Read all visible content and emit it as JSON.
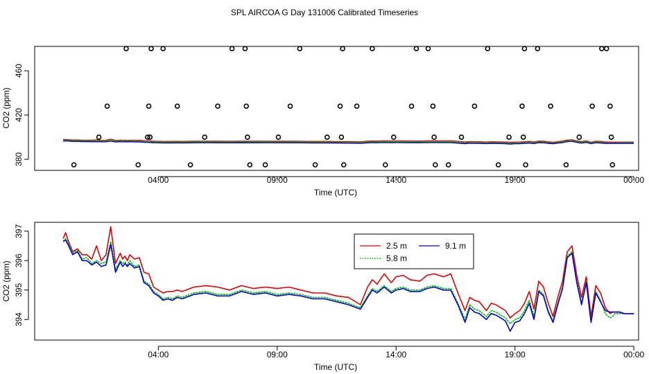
{
  "title": "SPL AIRCOA G  Day 131006  Calibrated Timeseries",
  "chart_data": [
    {
      "type": "scatter",
      "xlabel": "Time (UTC)",
      "ylabel": "CO2 (ppm)",
      "x_unit": "hours UTC",
      "xlim": [
        -0.2,
        25.2
      ],
      "ylim": [
        370,
        482
      ],
      "yticks": [
        380,
        420,
        460
      ],
      "ytick_labels": [
        "380",
        "420",
        "460"
      ],
      "xticks": [
        5,
        10,
        15,
        20,
        25
      ],
      "xtick_labels": [
        "04:00",
        "09:00",
        "14:00",
        "19:00",
        "00:00"
      ],
      "calibration_points": {
        "x": [
          1.45,
          2.5,
          2.85,
          3.65,
          4.15,
          4.55,
          4.6,
          4.65,
          4.7,
          5.2,
          5.8,
          6.35,
          6.95,
          7.5,
          8.1,
          8.65,
          8.7,
          8.75,
          8.85,
          9.5,
          10.05,
          10.55,
          10.95,
          11.6,
          12.1,
          12.65,
          12.7,
          12.75,
          12.8,
          13.35,
          14.0,
          14.55,
          14.9,
          15.65,
          15.85,
          16.35,
          16.55,
          16.6,
          16.65,
          17.2,
          17.75,
          18.3,
          18.85,
          19.3,
          19.75,
          20.3,
          20.35,
          20.4,
          20.45,
          20.95,
          21.5,
          22.15,
          22.7,
          23.25,
          23.65,
          23.85,
          24.0,
          24.05,
          24.1
        ],
        "y": [
          375,
          400,
          428,
          480,
          375,
          400,
          428,
          400,
          480,
          480,
          428,
          375,
          400,
          428,
          480,
          480,
          428,
          400,
          375,
          375,
          400,
          428,
          480,
          375,
          400,
          428,
          400,
          480,
          375,
          428,
          480,
          375,
          400,
          428,
          480,
          480,
          428,
          400,
          375,
          375,
          400,
          428,
          480,
          375,
          400,
          428,
          400,
          480,
          375,
          480,
          428,
          375,
          400,
          428,
          480,
          480,
          428,
          400,
          375
        ]
      },
      "series": [
        {
          "name": "2.5 m",
          "color": "#dd0000",
          "level": 396.4
        },
        {
          "name": "5.8 m",
          "color": "#00bb00",
          "level": 395.6
        },
        {
          "name": "9.1 m",
          "color": "#0000cc",
          "level": 395.0
        }
      ]
    },
    {
      "type": "line",
      "xlabel": "Time (UTC)",
      "ylabel": "CO2 (ppm)",
      "x_unit": "hours UTC",
      "xlim": [
        -0.2,
        25.2
      ],
      "ylim": [
        393.3,
        397.3
      ],
      "yticks": [
        394,
        395,
        396,
        397
      ],
      "ytick_labels": [
        "394",
        "395",
        "396",
        "397"
      ],
      "xticks": [
        5,
        10,
        15,
        20,
        25
      ],
      "xtick_labels": [
        "04:00",
        "09:00",
        "14:00",
        "19:00",
        "00:00"
      ],
      "legend_position": "top-center",
      "x": [
        1.0,
        1.1,
        1.2,
        1.4,
        1.6,
        1.8,
        2.0,
        2.2,
        2.4,
        2.6,
        2.8,
        3.0,
        3.2,
        3.4,
        3.5,
        3.6,
        3.7,
        3.8,
        4.0,
        4.2,
        4.4,
        4.6,
        4.8,
        5.0,
        5.2,
        5.4,
        5.6,
        5.8,
        6.0,
        6.5,
        7.0,
        7.5,
        8.0,
        8.5,
        9.0,
        9.5,
        10.0,
        10.5,
        11.0,
        11.5,
        12.0,
        12.5,
        13.0,
        13.5,
        13.8,
        14.0,
        14.2,
        14.5,
        14.8,
        15.0,
        15.3,
        15.6,
        16.0,
        16.3,
        16.6,
        17.0,
        17.3,
        17.6,
        17.9,
        18.1,
        18.3,
        18.5,
        18.8,
        19.0,
        19.2,
        19.4,
        19.6,
        19.8,
        20.0,
        20.2,
        20.4,
        20.6,
        20.8,
        21.0,
        21.2,
        21.4,
        21.6,
        21.8,
        22.0,
        22.2,
        22.4,
        22.6,
        22.8,
        23.0,
        23.2,
        23.4,
        23.6,
        23.8,
        24.0,
        24.1,
        24.2,
        24.4,
        24.6,
        24.8,
        25.0
      ],
      "series": [
        {
          "name": "2.5 m",
          "color": "#dd0000",
          "values": [
            396.75,
            396.95,
            396.7,
            396.3,
            396.4,
            396.2,
            396.2,
            396.05,
            396.5,
            396.0,
            396.2,
            397.15,
            395.9,
            396.25,
            396.05,
            396.15,
            396.0,
            396.2,
            396.05,
            396.1,
            395.6,
            395.55,
            395.1,
            395.0,
            394.9,
            394.95,
            394.95,
            395.0,
            394.95,
            395.1,
            395.15,
            395.1,
            395.0,
            395.15,
            395.05,
            395.1,
            395.05,
            395.1,
            395.0,
            394.9,
            394.9,
            394.8,
            394.75,
            394.5,
            395.1,
            395.35,
            395.2,
            395.55,
            395.25,
            395.45,
            395.5,
            395.35,
            395.3,
            395.5,
            395.55,
            395.45,
            395.55,
            394.9,
            394.3,
            394.75,
            394.65,
            394.6,
            394.3,
            394.55,
            394.5,
            394.4,
            394.3,
            394.05,
            394.2,
            394.3,
            394.55,
            394.95,
            394.35,
            395.3,
            395.1,
            394.55,
            394.1,
            394.75,
            395.3,
            396.3,
            396.5,
            395.5,
            394.75,
            395.45,
            394.1,
            395.15,
            394.9,
            394.4,
            394.2,
            394.25,
            394.25,
            394.25,
            394.2,
            394.2,
            394.2
          ]
        },
        {
          "name": "5.8 m",
          "color": "#00bb00",
          "values": [
            396.65,
            396.75,
            396.6,
            396.25,
            396.35,
            396.05,
            396.1,
            395.9,
            396.0,
            395.9,
            395.95,
            396.65,
            395.7,
            396.0,
            395.9,
            395.95,
            395.85,
            396.0,
            395.8,
            395.85,
            395.3,
            395.2,
            394.95,
            394.85,
            394.7,
            394.75,
            394.7,
            394.8,
            394.75,
            394.9,
            394.95,
            394.85,
            394.85,
            395.0,
            394.9,
            394.95,
            394.85,
            394.9,
            394.85,
            394.75,
            394.75,
            394.65,
            394.55,
            394.4,
            394.8,
            395.05,
            394.95,
            395.15,
            394.95,
            395.05,
            395.1,
            395.0,
            395.0,
            395.1,
            395.15,
            395.05,
            395.05,
            394.55,
            394.0,
            394.5,
            394.35,
            394.3,
            394.1,
            394.3,
            394.25,
            394.15,
            394.05,
            393.85,
            394.0,
            394.05,
            394.3,
            394.65,
            394.1,
            395.0,
            394.85,
            394.3,
            393.95,
            394.55,
            395.1,
            396.15,
            396.3,
            395.3,
            394.55,
            395.3,
            393.95,
            394.95,
            394.65,
            394.2,
            394.05,
            394.1,
            394.2,
            394.2,
            394.2,
            394.2,
            394.2
          ]
        },
        {
          "name": "9.1 m",
          "color": "#0000cc",
          "values": [
            396.65,
            396.7,
            396.55,
            396.2,
            396.3,
            396.0,
            396.0,
            395.85,
            395.95,
            395.8,
            395.85,
            396.55,
            395.6,
            395.95,
            395.8,
            395.9,
            395.8,
            395.9,
            395.75,
            395.8,
            395.25,
            395.15,
            394.9,
            394.8,
            394.65,
            394.7,
            394.65,
            394.75,
            394.7,
            394.85,
            394.9,
            394.8,
            394.8,
            394.95,
            394.85,
            394.9,
            394.8,
            394.85,
            394.8,
            394.7,
            394.7,
            394.6,
            394.5,
            394.35,
            394.75,
            395.0,
            394.9,
            395.1,
            394.9,
            395.0,
            395.05,
            394.95,
            394.95,
            395.05,
            395.1,
            395.0,
            395.0,
            394.5,
            393.9,
            394.4,
            394.25,
            394.2,
            394.0,
            394.2,
            394.15,
            394.05,
            393.95,
            393.6,
            393.9,
            393.95,
            394.2,
            394.55,
            394.0,
            394.95,
            394.8,
            394.25,
            393.9,
            394.5,
            395.05,
            396.1,
            396.25,
            395.25,
            394.5,
            395.25,
            393.9,
            394.9,
            394.6,
            394.3,
            394.25,
            394.25,
            394.25,
            394.25,
            394.2,
            394.2,
            394.2
          ]
        }
      ]
    }
  ]
}
